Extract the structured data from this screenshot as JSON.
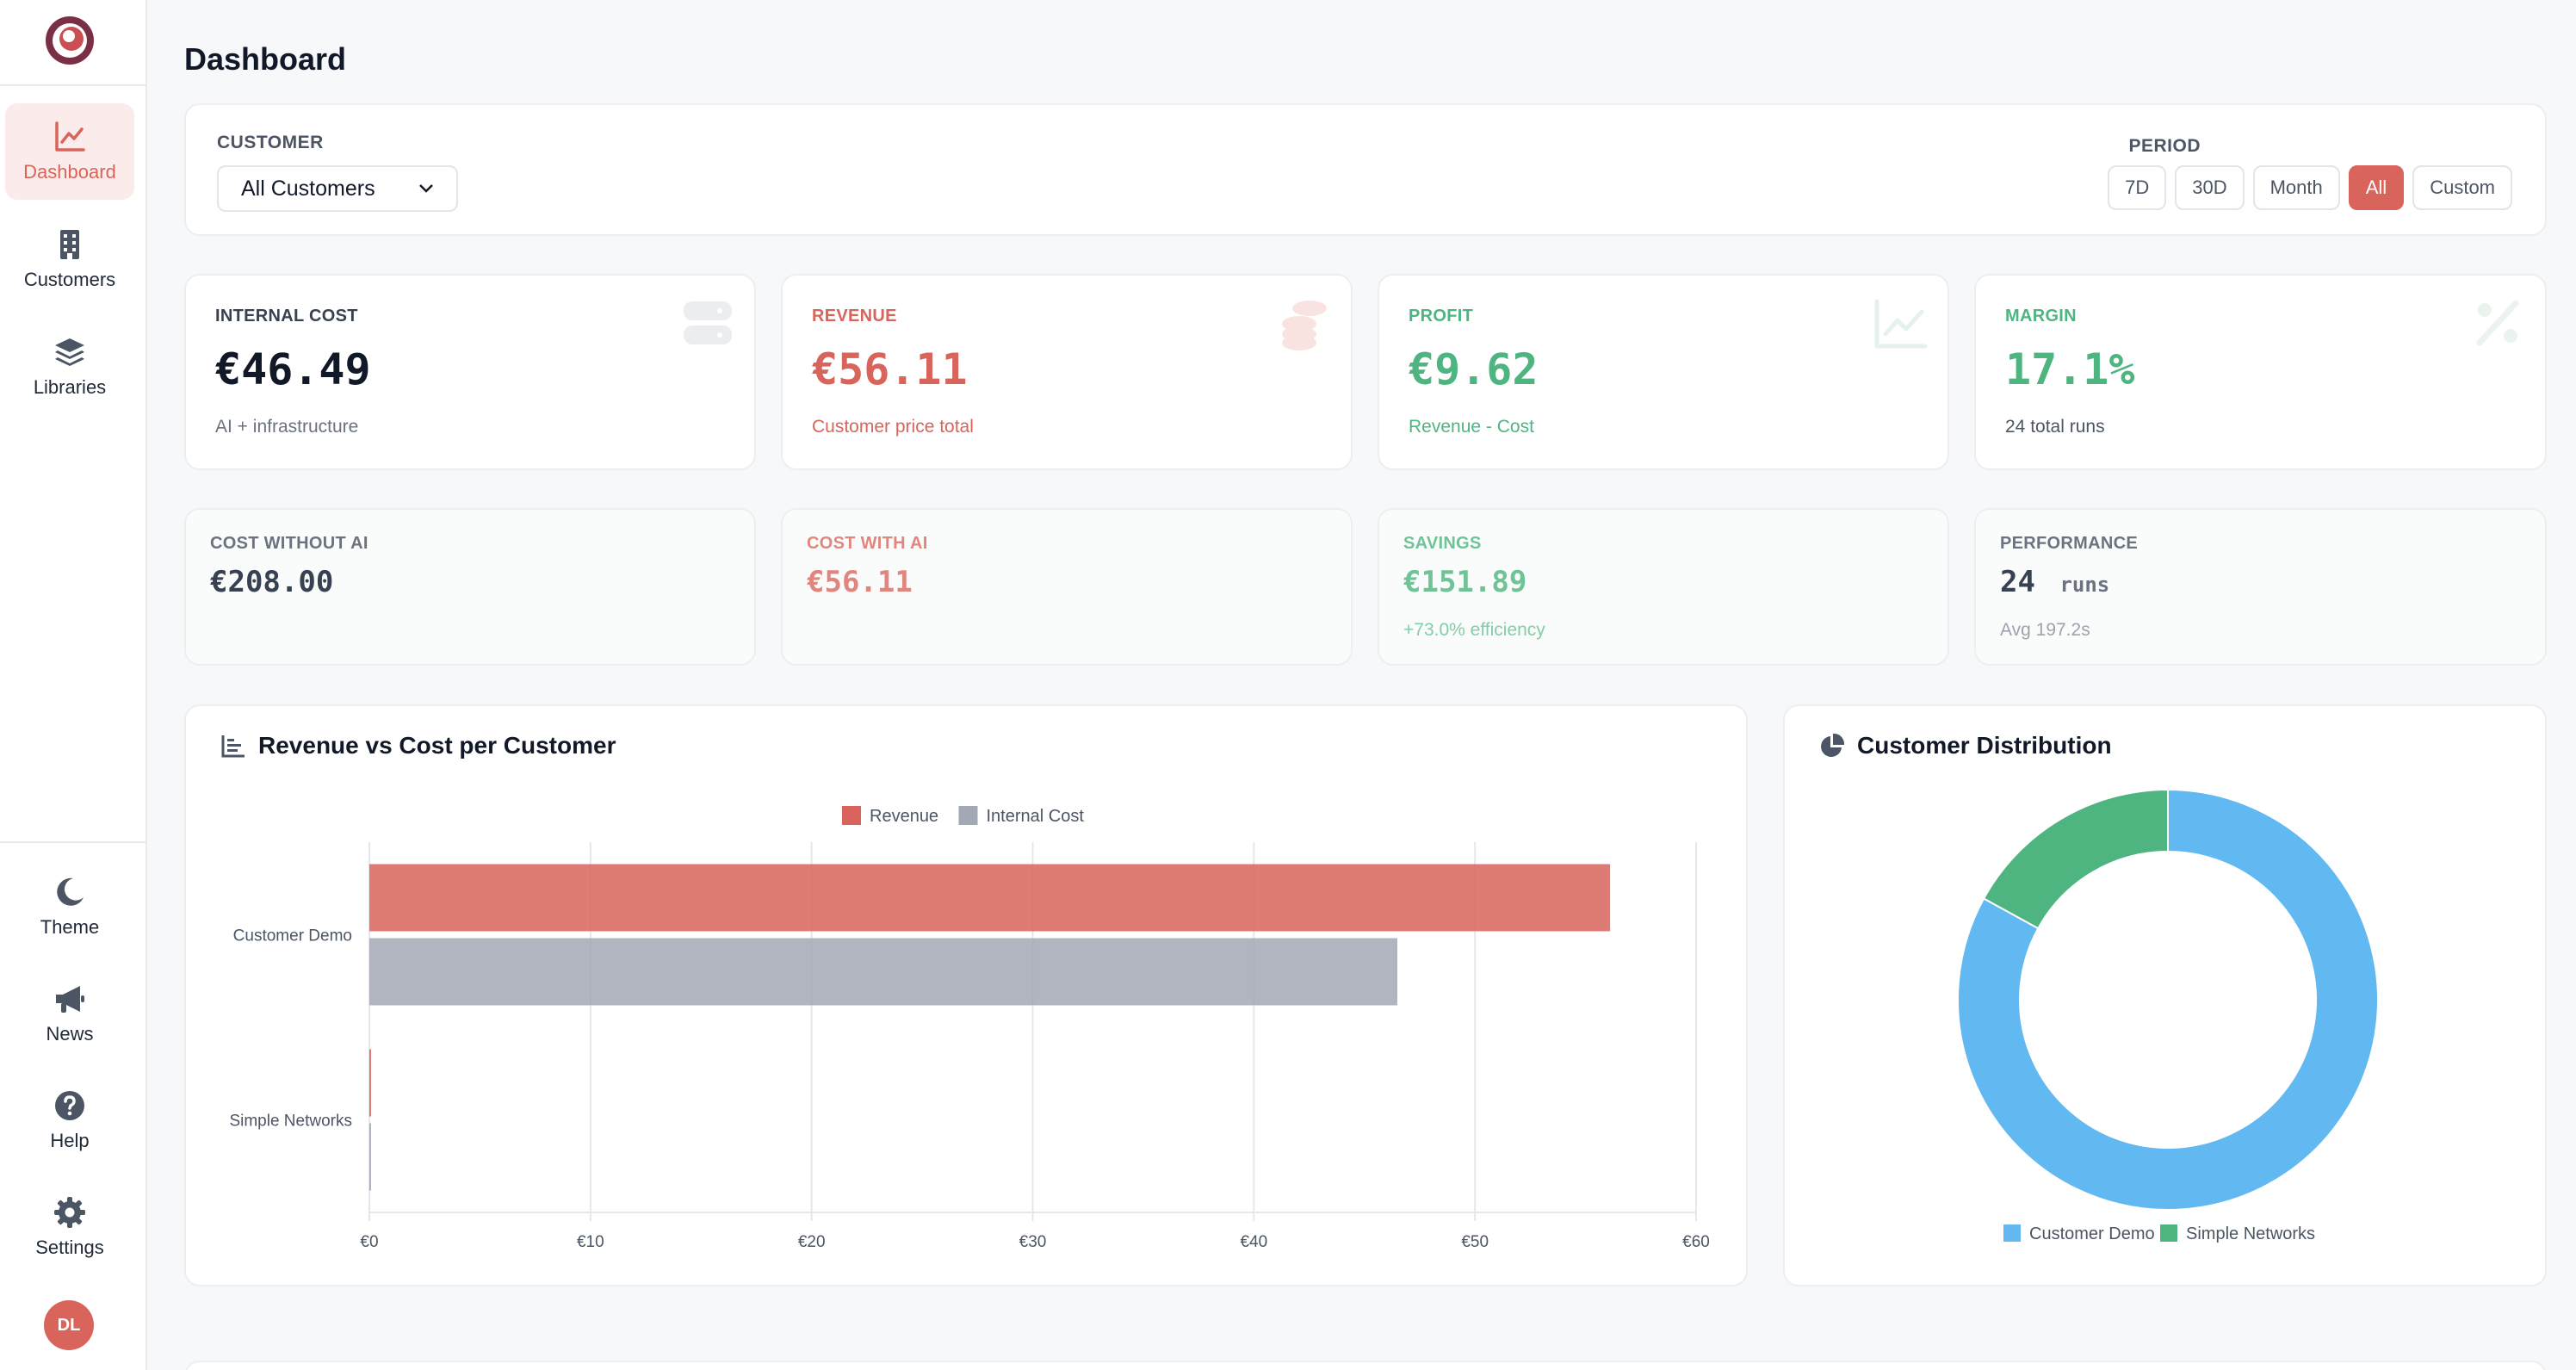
{
  "sidebar": {
    "items": [
      {
        "label": "Dashboard",
        "icon": "chart-line-icon"
      },
      {
        "label": "Customers",
        "icon": "building-icon"
      },
      {
        "label": "Libraries",
        "icon": "layers-icon"
      }
    ],
    "bottom": [
      {
        "label": "Theme",
        "icon": "moon-icon"
      },
      {
        "label": "News",
        "icon": "megaphone-icon"
      },
      {
        "label": "Help",
        "icon": "question-circle-icon"
      },
      {
        "label": "Settings",
        "icon": "gear-icon"
      }
    ],
    "avatar": "DL"
  },
  "page": {
    "title": "Dashboard"
  },
  "filters": {
    "customer_label": "CUSTOMER",
    "customer_value": "All Customers",
    "period_label": "PERIOD",
    "periods": [
      "7D",
      "30D",
      "Month",
      "All",
      "Custom"
    ],
    "active_period": "All"
  },
  "stats": [
    {
      "label": "INTERNAL COST",
      "value": "€46.49",
      "sub": "AI + infrastructure",
      "icon": "server-icon"
    },
    {
      "label": "REVENUE",
      "value": "€56.11",
      "sub": "Customer price total",
      "icon": "coins-icon"
    },
    {
      "label": "PROFIT",
      "value": "€9.62",
      "sub": "Revenue - Cost",
      "icon": "chart-line-icon"
    },
    {
      "label": "MARGIN",
      "value": "17.1%",
      "sub": "24 total runs",
      "icon": "percent-icon"
    }
  ],
  "stats2": [
    {
      "label": "COST WITHOUT AI",
      "value": "€208.00",
      "sub": ""
    },
    {
      "label": "COST WITH AI",
      "value": "€56.11",
      "sub": ""
    },
    {
      "label": "SAVINGS",
      "value": "€151.89",
      "sub": "+73.0% efficiency"
    },
    {
      "label": "PERFORMANCE",
      "value": "24",
      "unit": "runs",
      "sub": "Avg 197.2s"
    }
  ],
  "colors": {
    "accent": "#d8645c",
    "green": "#4fb580",
    "gray_bar": "#a2a8b4",
    "blue": "#62b8f0",
    "text_dark": "#111827"
  },
  "chart_data": [
    {
      "type": "bar",
      "orientation": "horizontal",
      "title": "Revenue vs Cost per Customer",
      "categories": [
        "Customer Demo",
        "Simple Networks"
      ],
      "series": [
        {
          "name": "Revenue",
          "values": [
            56.11,
            0.0
          ],
          "color": "#d8645c"
        },
        {
          "name": "Internal Cost",
          "values": [
            46.49,
            0.0
          ],
          "color": "#a2a8b4"
        }
      ],
      "xlim": [
        0,
        60
      ],
      "xticks": [
        "€0",
        "€10",
        "€20",
        "€30",
        "€40",
        "€50",
        "€60"
      ],
      "grid": true,
      "legend": "top-center"
    },
    {
      "type": "pie",
      "subtype": "doughnut",
      "title": "Customer Distribution",
      "labels": [
        "Customer Demo",
        "Simple Networks"
      ],
      "values": [
        83,
        17
      ],
      "colors": [
        "#62b8f0",
        "#4fb580"
      ],
      "legend": "bottom-center"
    }
  ]
}
